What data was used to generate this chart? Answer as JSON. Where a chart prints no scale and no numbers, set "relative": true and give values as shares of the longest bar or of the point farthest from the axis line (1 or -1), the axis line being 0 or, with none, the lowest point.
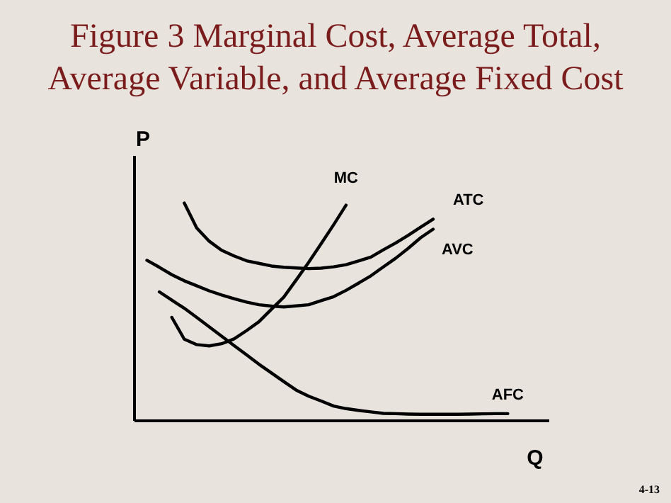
{
  "chart_data": {
    "type": "line",
    "relative": true,
    "title": "Figure 3 Marginal Cost, Average Total, Average Variable, and Average Fixed Cost",
    "xlabel": "Q",
    "ylabel": "P",
    "annotations": [
      "4-13"
    ],
    "marker": "none",
    "line_style": "solid",
    "categories": [
      null,
      null,
      null,
      null,
      null,
      null,
      null,
      null,
      null,
      null,
      null,
      null,
      null,
      null,
      null,
      null,
      null,
      null,
      null,
      null,
      null,
      null,
      null,
      null,
      null,
      null,
      null,
      null,
      null,
      null,
      null
    ],
    "series": [
      {
        "name": "MC",
        "color": "#000000",
        "values": [
          null,
          null,
          null,
          0.475,
          0.375,
          0.35,
          0.344,
          0.354,
          0.376,
          0.414,
          0.455,
          0.512,
          0.568,
          0.647,
          0.728,
          0.813,
          0.9,
          0.99,
          null,
          null,
          null,
          null,
          null,
          null,
          null,
          null,
          null,
          null,
          null,
          null,
          null
        ]
      },
      {
        "name": "ATC",
        "color": "#000000",
        "values": [
          null,
          null,
          null,
          null,
          1,
          0.886,
          0.825,
          0.783,
          0.757,
          0.735,
          0.723,
          0.711,
          0.705,
          0.702,
          0.699,
          0.701,
          0.707,
          0.717,
          0.734,
          0.752,
          0.785,
          0.817,
          0.852,
          0.889,
          0.926,
          null,
          null,
          null,
          null,
          null,
          null
        ]
      },
      {
        "name": "AVC",
        "color": "#000000",
        "values": [
          null,
          0.737,
          0.705,
          0.671,
          0.643,
          0.62,
          0.597,
          0.578,
          0.561,
          0.545,
          0.533,
          0.527,
          0.523,
          0.528,
          0.533,
          0.552,
          0.57,
          0.599,
          0.632,
          0.666,
          0.707,
          0.747,
          0.792,
          0.841,
          0.88,
          null,
          null,
          null,
          null,
          null,
          null
        ]
      },
      {
        "name": "AFC",
        "color": "#000000",
        "values": [
          null,
          null,
          0.592,
          0.554,
          0.517,
          0.475,
          0.432,
          0.389,
          0.346,
          0.303,
          0.26,
          0.22,
          0.18,
          0.141,
          0.113,
          0.091,
          0.068,
          0.056,
          0.048,
          0.041,
          0.034,
          0.033,
          0.031,
          0.03,
          0.03,
          0.03,
          0.03,
          0.031,
          0.032,
          0.033,
          0.033
        ]
      }
    ]
  }
}
